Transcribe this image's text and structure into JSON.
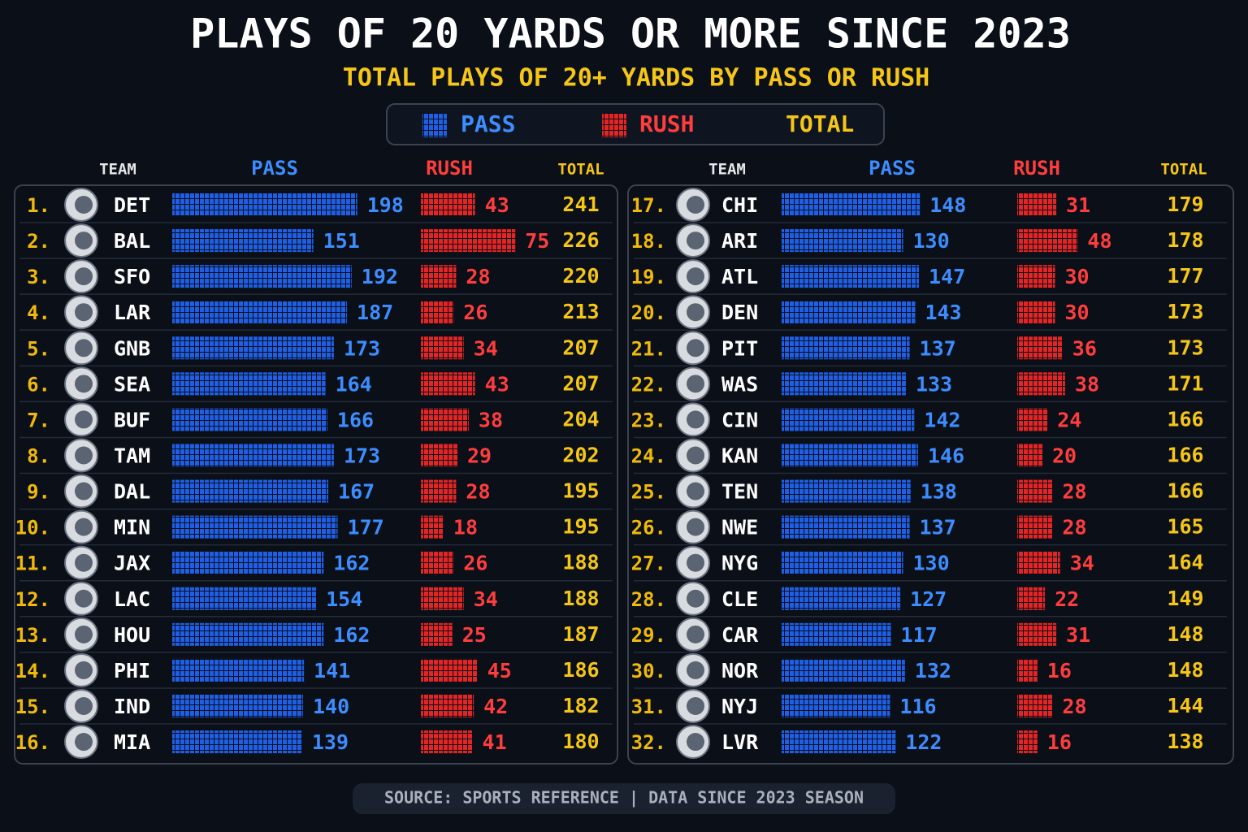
{
  "chart_data": {
    "type": "bar",
    "title": "PLAYS OF 20 YARDS OR MORE SINCE 2023",
    "subtitle": "TOTAL PLAYS OF 20+ YARDS BY PASS OR RUSH",
    "team_label": "TEAM",
    "ranks": [
      "1.",
      "2.",
      "3.",
      "4.",
      "5.",
      "6.",
      "7.",
      "8.",
      "9.",
      "10.",
      "11.",
      "12.",
      "13.",
      "14.",
      "15.",
      "16.",
      "17.",
      "18.",
      "19.",
      "20.",
      "21.",
      "22.",
      "23.",
      "24.",
      "25.",
      "26.",
      "27.",
      "28.",
      "29.",
      "30.",
      "31.",
      "32."
    ],
    "categories": [
      "DET",
      "BAL",
      "SFO",
      "LAR",
      "GNB",
      "SEA",
      "BUF",
      "TAM",
      "DAL",
      "MIN",
      "JAX",
      "LAC",
      "HOU",
      "PHI",
      "IND",
      "MIA",
      "CHI",
      "ARI",
      "ATL",
      "DEN",
      "PIT",
      "WAS",
      "CIN",
      "KAN",
      "TEN",
      "NWE",
      "NYG",
      "CLE",
      "CAR",
      "NOR",
      "NYJ",
      "LVR"
    ],
    "series": [
      {
        "name": "PASS",
        "color": "#1f5fe6",
        "values": [
          198,
          151,
          192,
          187,
          173,
          164,
          166,
          173,
          167,
          177,
          162,
          154,
          162,
          141,
          140,
          139,
          148,
          130,
          147,
          143,
          137,
          133,
          142,
          146,
          138,
          137,
          130,
          127,
          117,
          132,
          116,
          122
        ]
      },
      {
        "name": "RUSH",
        "color": "#e52424",
        "values": [
          43,
          75,
          28,
          26,
          34,
          43,
          38,
          29,
          28,
          18,
          26,
          34,
          25,
          45,
          42,
          41,
          31,
          48,
          30,
          30,
          36,
          38,
          24,
          20,
          28,
          28,
          34,
          22,
          31,
          16,
          28,
          16
        ]
      },
      {
        "name": "TOTAL",
        "color": "#f5c518",
        "values": [
          241,
          226,
          220,
          213,
          207,
          207,
          204,
          202,
          195,
          195,
          188,
          188,
          187,
          186,
          182,
          180,
          179,
          178,
          177,
          173,
          173,
          171,
          166,
          166,
          166,
          165,
          164,
          149,
          148,
          148,
          144,
          138
        ]
      }
    ],
    "source": "SOURCE: SPORTS REFERENCE  |  DATA SINCE 2023 SEASON"
  }
}
